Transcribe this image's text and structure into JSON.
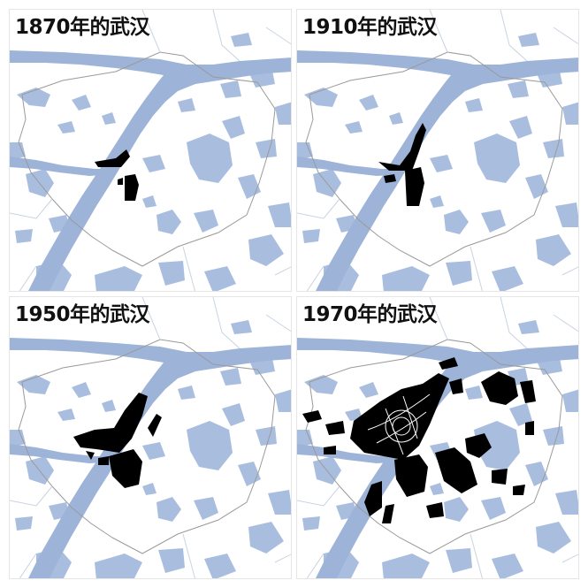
{
  "panels": [
    {
      "title": "1870年的武汉",
      "urban_extent_stage": 1
    },
    {
      "title": "1910年的武汉",
      "urban_extent_stage": 2
    },
    {
      "title": "1950年的武汉",
      "urban_extent_stage": 3
    },
    {
      "title": "1970年的武汉",
      "urban_extent_stage": 4
    }
  ],
  "colors": {
    "river": "#9db3d8",
    "lakes": "#a9bedf",
    "urban": "#000000",
    "boundary": "#9a9a9a",
    "background": "#ffffff"
  }
}
